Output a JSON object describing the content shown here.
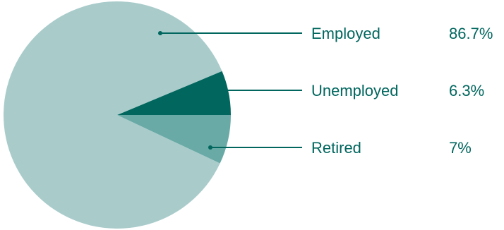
{
  "chart_data": {
    "type": "pie",
    "title": "",
    "slices": [
      {
        "label": "Employed",
        "value": 86.7,
        "display": "86.7%",
        "color": "#a9cccb"
      },
      {
        "label": "Unemployed",
        "value": 6.3,
        "display": "6.3%",
        "color": "#00665e"
      },
      {
        "label": "Retired",
        "value": 7,
        "display": "7%",
        "color": "#69aaa6"
      }
    ],
    "label_color": "#00665e",
    "leader_color": "#00665e",
    "legend_placement": "right"
  }
}
